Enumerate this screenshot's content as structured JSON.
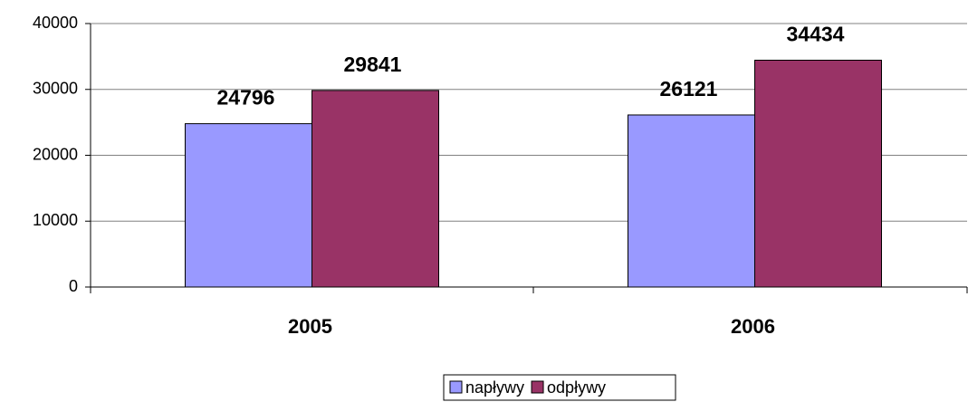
{
  "chart_data": {
    "type": "bar",
    "categories": [
      "2005",
      "2006"
    ],
    "series": [
      {
        "name": "napływy",
        "color": "#9999ff",
        "values": [
          24796,
          26121
        ]
      },
      {
        "name": "odpływy",
        "color": "#993366",
        "values": [
          29841,
          34434
        ]
      }
    ],
    "ylim": [
      0,
      40000
    ],
    "yticks": [
      0,
      10000,
      20000,
      30000,
      40000
    ],
    "grid": true,
    "legend": "bottom"
  }
}
